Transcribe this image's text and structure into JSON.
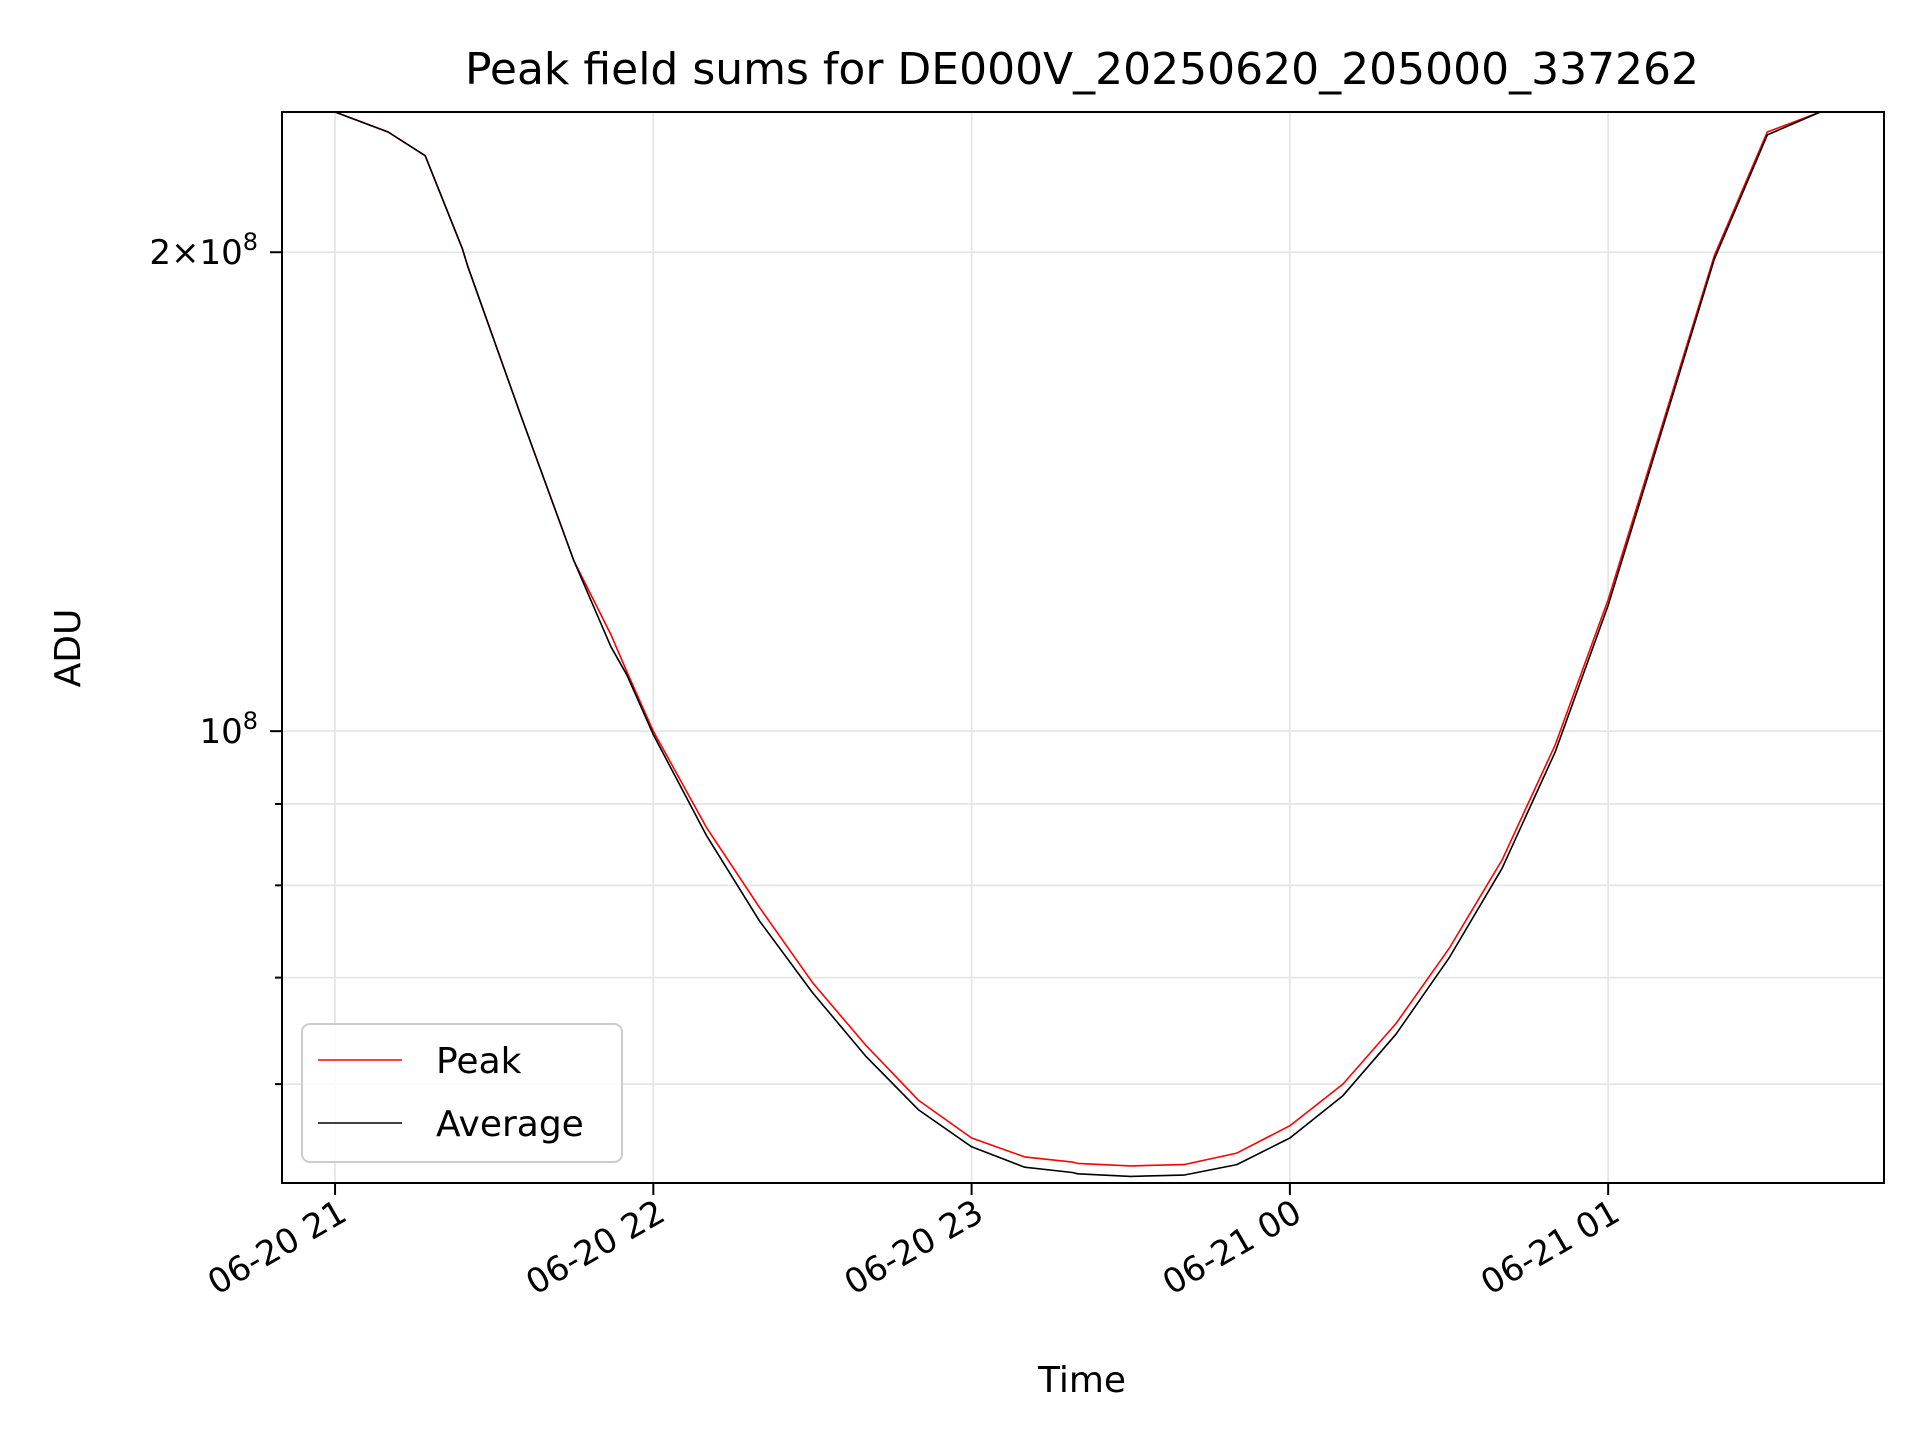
{
  "chart_data": {
    "type": "line",
    "title": "Peak field sums for DE000V_20250620_205000_337262",
    "xlabel": "Time",
    "ylabel": "ADU",
    "y_scale": "log",
    "ylim": [
      52000000,
      245000000
    ],
    "xlim": [
      "2025-06-20 20:50",
      "2025-06-21 01:52"
    ],
    "x_ticks": [
      "2025-06-20 21:00",
      "2025-06-20 22:00",
      "2025-06-20 23:00",
      "2025-06-21 00:00",
      "2025-06-21 01:00"
    ],
    "x_tick_labels": [
      "06-20 21",
      "06-20 22",
      "06-20 23",
      "06-21 00",
      "06-21 01"
    ],
    "y_major_ticks": [
      100000000,
      200000000
    ],
    "y_minor_ticks": [
      60000000,
      70000000,
      80000000,
      90000000
    ],
    "grid": true,
    "legend_position": "lower-left",
    "series": [
      {
        "name": "Peak",
        "color": "#ff0000",
        "x": [
          "2025-06-20 21:00",
          "2025-06-20 21:10",
          "2025-06-20 21:17",
          "2025-06-20 21:24",
          "2025-06-20 21:25",
          "2025-06-20 21:35",
          "2025-06-20 21:45",
          "2025-06-20 21:52",
          "2025-06-20 21:55",
          "2025-06-20 22:00",
          "2025-06-20 22:10",
          "2025-06-20 22:20",
          "2025-06-20 22:30",
          "2025-06-20 22:40",
          "2025-06-20 22:50",
          "2025-06-20 23:00",
          "2025-06-20 23:10",
          "2025-06-20 23:19",
          "2025-06-20 23:20",
          "2025-06-20 23:30",
          "2025-06-20 23:40",
          "2025-06-20 23:50",
          "2025-06-21 00:00",
          "2025-06-21 00:10",
          "2025-06-21 00:20",
          "2025-06-21 00:30",
          "2025-06-21 00:40",
          "2025-06-21 00:50",
          "2025-06-21 01:00",
          "2025-06-21 01:10",
          "2025-06-21 01:20",
          "2025-06-21 01:30",
          "2025-06-21 01:40",
          "2025-06-21 01:50"
        ],
        "y": [
          245000000,
          238000000,
          230000000,
          201000000,
          196000000,
          158000000,
          128000000,
          115000000,
          109000000,
          100000000,
          87000000,
          77500000,
          69500000,
          63500000,
          58600000,
          55500000,
          54000000,
          53600000,
          53500000,
          53300000,
          53400000,
          54300000,
          56500000,
          60000000,
          65500000,
          73000000,
          83000000,
          98000000,
          121000000,
          155000000,
          199000000,
          238000000,
          245000000,
          245000000
        ]
      },
      {
        "name": "Average",
        "color": "#000000",
        "x": [
          "2025-06-20 21:00",
          "2025-06-20 21:10",
          "2025-06-20 21:17",
          "2025-06-20 21:24",
          "2025-06-20 21:25",
          "2025-06-20 21:35",
          "2025-06-20 21:45",
          "2025-06-20 21:52",
          "2025-06-20 21:55",
          "2025-06-20 22:00",
          "2025-06-20 22:10",
          "2025-06-20 22:20",
          "2025-06-20 22:30",
          "2025-06-20 22:40",
          "2025-06-20 22:50",
          "2025-06-20 23:00",
          "2025-06-20 23:10",
          "2025-06-20 23:19",
          "2025-06-20 23:20",
          "2025-06-20 23:30",
          "2025-06-20 23:40",
          "2025-06-20 23:50",
          "2025-06-21 00:00",
          "2025-06-21 00:10",
          "2025-06-21 00:20",
          "2025-06-21 00:30",
          "2025-06-21 00:40",
          "2025-06-21 00:50",
          "2025-06-21 01:00",
          "2025-06-21 01:10",
          "2025-06-21 01:20",
          "2025-06-21 01:30",
          "2025-06-21 01:40",
          "2025-06-21 01:50"
        ],
        "y": [
          245000000,
          238000000,
          230000000,
          201000000,
          196000000,
          158000000,
          128000000,
          113000000,
          108500000,
          99500000,
          86000000,
          76000000,
          68500000,
          62500000,
          57800000,
          54800000,
          53200000,
          52800000,
          52700000,
          52500000,
          52600000,
          53400000,
          55500000,
          59000000,
          64500000,
          72000000,
          82000000,
          97000000,
          120000000,
          154000000,
          198000000,
          237000000,
          245000000,
          245000000
        ]
      }
    ]
  }
}
